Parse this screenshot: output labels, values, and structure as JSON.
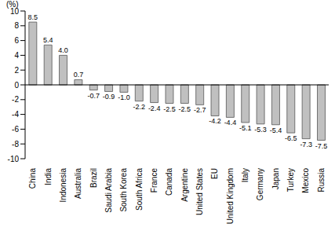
{
  "chart_data": {
    "type": "bar",
    "y_label": "(%)",
    "categories": [
      "China",
      "India",
      "Indonesia",
      "Australia",
      "Brazil",
      "Saudi Arabia",
      "South Korea",
      "South Africa",
      "France",
      "Canada",
      "Argentine",
      "United States",
      "EU",
      "United Kingdom",
      "Italy",
      "Germany",
      "Japan",
      "Turkey",
      "Mexico",
      "Russia"
    ],
    "values": [
      8.5,
      5.4,
      4.0,
      0.7,
      -0.7,
      -0.9,
      -1.0,
      -2.2,
      -2.4,
      -2.5,
      -2.5,
      -2.7,
      -4.2,
      -4.4,
      -5.1,
      -5.3,
      -5.4,
      -6.5,
      -7.3,
      -7.5
    ],
    "value_labels": [
      "8.5",
      "5.4",
      "4.0",
      "0.7",
      "-0.7",
      "-0.9",
      "-1.0",
      "-2.2",
      "-2.4",
      "-2.5",
      "-2.5",
      "-2.7",
      "-4.2",
      "-4.4",
      "-5.1",
      "-5.3",
      "-5.4",
      "-6.5",
      "-7.3",
      "-7.5"
    ],
    "color": "#c0c0c0",
    "ylim": [
      -10,
      10
    ],
    "yticks": [
      -10,
      -8,
      -6,
      -4,
      -2,
      0,
      2,
      4,
      6,
      8,
      10
    ],
    "grid": false,
    "data_labels": true
  }
}
